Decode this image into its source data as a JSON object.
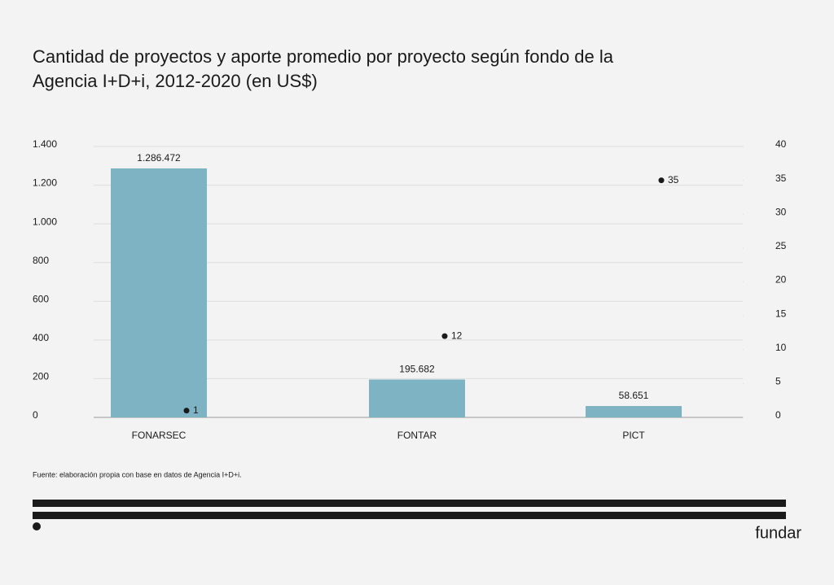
{
  "chart_data": {
    "type": "bar",
    "title": [
      "Cantidad de proyectos y aporte promedio por proyecto según fondo de la",
      "Agencia I+D+i, 2012-2020 (en US$)"
    ],
    "categories": [
      "FONARSEC",
      "FONTAR",
      "PICT"
    ],
    "series": [
      {
        "type": "bar",
        "color": "#7db3c3",
        "values": [
          1286.472,
          195.682,
          58.651
        ],
        "value_labels": [
          "1.286.472",
          "195.682",
          "58.651"
        ]
      },
      {
        "type": "scatter",
        "axis": "y2",
        "color": "#1a1a1a",
        "values": [
          1,
          12,
          35
        ]
      }
    ],
    "ylim": [
      0,
      1400
    ],
    "yticks": [
      0,
      200,
      400,
      600,
      800,
      {
        "value": 1000,
        "label": "1.000"
      },
      {
        "value": 1200,
        "label": "1.200"
      },
      {
        "value": 1400,
        "label": "1.400"
      }
    ],
    "y2lim": [
      0,
      40
    ],
    "y2ticks": [
      0,
      5,
      10,
      15,
      20,
      25,
      30,
      35,
      40
    ],
    "grid": true,
    "source": "Fuente: elaboración propia con base en datos de Agencia I+D+i.",
    "brand": "fundar"
  }
}
